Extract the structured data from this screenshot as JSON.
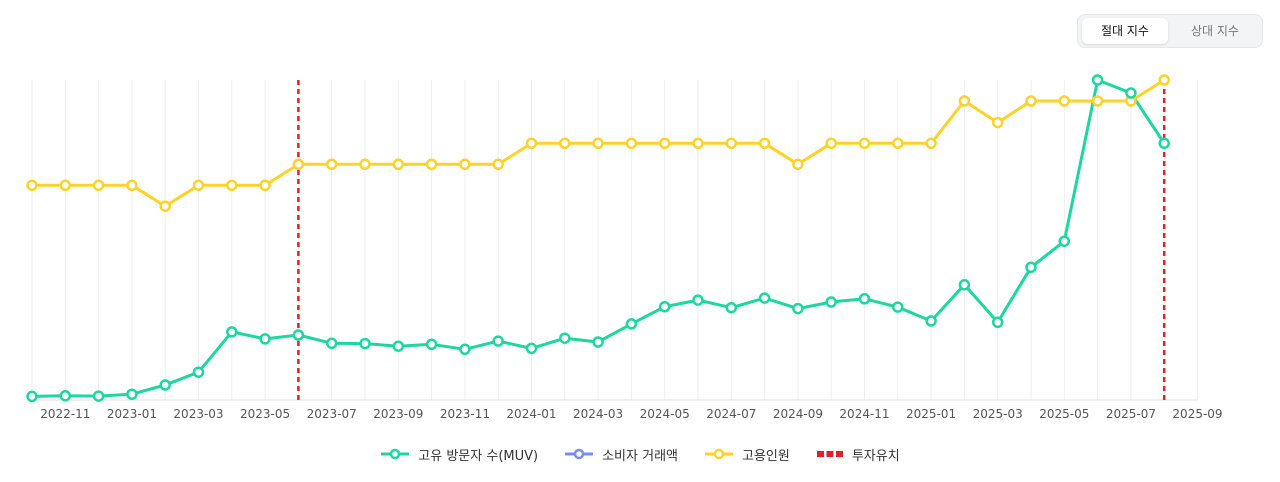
{
  "toggle": {
    "absolute_label": "절대 지수",
    "relative_label": "상대 지수"
  },
  "colors": {
    "muv": "#1ed6a0",
    "transactions": "#7b8cf0",
    "employees": "#fdd22b",
    "investment": "#e0202a",
    "grid": "#eeeeee"
  },
  "chart_data": {
    "type": "line",
    "x_ticks": [
      "2022-11",
      "2023-01",
      "2023-03",
      "2023-05",
      "2023-07",
      "2023-09",
      "2023-11",
      "2024-01",
      "2024-03",
      "2024-05",
      "2024-07",
      "2024-09",
      "2024-11",
      "2025-01",
      "2025-03",
      "2025-05",
      "2025-07",
      "2025-09"
    ],
    "months": [
      "2022-10",
      "2022-11",
      "2022-12",
      "2023-01",
      "2023-02",
      "2023-03",
      "2023-04",
      "2023-05",
      "2023-06",
      "2023-07",
      "2023-08",
      "2023-09",
      "2023-10",
      "2023-11",
      "2023-12",
      "2024-01",
      "2024-02",
      "2024-03",
      "2024-04",
      "2024-05",
      "2024-06",
      "2024-07",
      "2024-08",
      "2024-09",
      "2024-10",
      "2024-11",
      "2024-12",
      "2025-01",
      "2025-02",
      "2025-03",
      "2025-04",
      "2025-05",
      "2025-06",
      "2025-07",
      "2025-08",
      "2025-09"
    ],
    "y_range": [
      0,
      100
    ],
    "series": [
      {
        "name": "고유 방문자 수(MUV)",
        "key": "muv",
        "values": [
          0.5,
          0.7,
          0.6,
          1.2,
          4.1,
          8.1,
          20.8,
          18.6,
          19.8,
          17.2,
          17.1,
          16.3,
          16.9,
          15.3,
          17.9,
          15.6,
          18.8,
          17.6,
          23.3,
          28.7,
          30.8,
          28.4,
          31.4,
          28.1,
          30.2,
          31.2,
          28.6,
          24.2,
          35.6,
          23.8,
          41.1,
          49.3,
          100,
          95.9,
          80.1,
          null
        ]
      },
      {
        "name": "소비자 거래액",
        "key": "transactions",
        "values": []
      },
      {
        "name": "고용인원",
        "key": "employees",
        "values": [
          66.9,
          66.9,
          66.9,
          66.9,
          60.3,
          66.9,
          66.9,
          66.9,
          73.5,
          73.5,
          73.5,
          73.5,
          73.5,
          73.5,
          73.5,
          80.1,
          80.1,
          80.1,
          80.1,
          80.1,
          80.1,
          80.1,
          80.1,
          73.5,
          80.1,
          80.1,
          80.1,
          80.1,
          93.4,
          86.6,
          93.4,
          93.4,
          93.4,
          93.4,
          100,
          null
        ]
      }
    ],
    "investment_months": [
      "2023-06",
      "2025-08"
    ],
    "legend": [
      {
        "label": "고유 방문자 수(MUV)",
        "key": "muv",
        "style": "line-dot"
      },
      {
        "label": "소비자 거래액",
        "key": "transactions",
        "style": "line-dot"
      },
      {
        "label": "고용인원",
        "key": "employees",
        "style": "line-dot"
      },
      {
        "label": "투자유치",
        "key": "investment",
        "style": "dashed"
      }
    ]
  }
}
